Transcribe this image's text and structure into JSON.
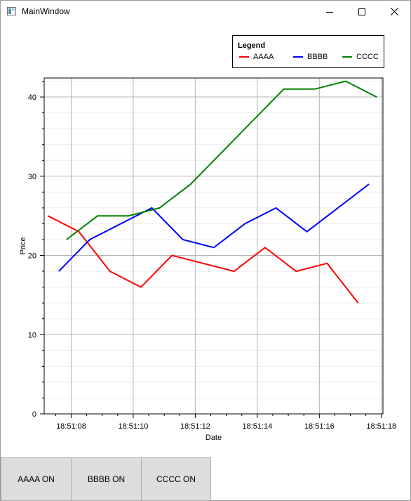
{
  "window": {
    "title": "MainWindow"
  },
  "legend": {
    "title": "Legend",
    "items": [
      {
        "label": "AAAA",
        "color": "#ff0000"
      },
      {
        "label": "BBBB",
        "color": "#0000ff"
      },
      {
        "label": "CCCC",
        "color": "#008000"
      }
    ]
  },
  "buttons": [
    {
      "label": "AAAA ON"
    },
    {
      "label": "BBBB ON"
    },
    {
      "label": "CCCC ON"
    }
  ],
  "chart_data": {
    "type": "line",
    "xlabel": "Date",
    "ylabel": "Price",
    "x_ticks": [
      "18:51:08",
      "18:51:10",
      "18:51:12",
      "18:51:14",
      "18:51:16",
      "18:51:18"
    ],
    "y_ticks": [
      0,
      10,
      20,
      30,
      40
    ],
    "xlim": [
      "18:51:07.13",
      "18:51:18.05"
    ],
    "ylim": [
      0,
      42.4
    ],
    "grid": true,
    "legend_position": "top-right",
    "series": [
      {
        "name": "AAAA",
        "color": "#ff0000",
        "points": [
          [
            "18:51:07.25",
            25
          ],
          [
            "18:51:08.25",
            23
          ],
          [
            "18:51:09.25",
            18
          ],
          [
            "18:51:10.25",
            16
          ],
          [
            "18:51:11.25",
            20
          ],
          [
            "18:51:13.25",
            18
          ],
          [
            "18:51:14.25",
            21
          ],
          [
            "18:51:15.25",
            18
          ],
          [
            "18:51:16.25",
            19
          ],
          [
            "18:51:17.25",
            14
          ]
        ]
      },
      {
        "name": "BBBB",
        "color": "#0000ff",
        "points": [
          [
            "18:51:07.6",
            18
          ],
          [
            "18:51:08.6",
            22
          ],
          [
            "18:51:10.6",
            26
          ],
          [
            "18:51:11.6",
            22
          ],
          [
            "18:51:12.6",
            21
          ],
          [
            "18:51:13.6",
            24
          ],
          [
            "18:51:14.6",
            26
          ],
          [
            "18:51:15.6",
            23
          ],
          [
            "18:51:17.6",
            29
          ]
        ]
      },
      {
        "name": "CCCC",
        "color": "#008000",
        "points": [
          [
            "18:51:07.85",
            22
          ],
          [
            "18:51:08.85",
            25
          ],
          [
            "18:51:09.85",
            25
          ],
          [
            "18:51:10.85",
            26
          ],
          [
            "18:51:11.85",
            29
          ],
          [
            "18:51:14.85",
            41
          ],
          [
            "18:51:15.85",
            41
          ],
          [
            "18:51:16.85",
            42
          ],
          [
            "18:51:17.85",
            40
          ]
        ]
      }
    ]
  }
}
